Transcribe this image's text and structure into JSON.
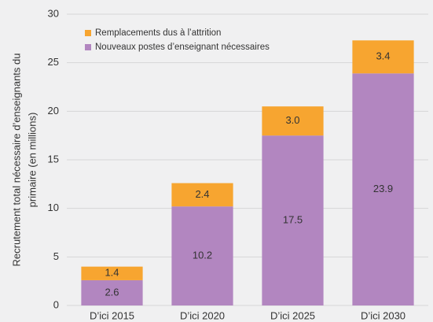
{
  "chart_data": {
    "type": "stacked_bar",
    "ylabel": [
      "Recrutement total nécessaire d’enseignants du",
      "primaire (en millions)"
    ],
    "categories": [
      "D’ici 2015",
      "D’ici 2020",
      "D’ici 2025",
      "D’ici 2030"
    ],
    "series": [
      {
        "name": "Nouveaux postes d’enseignant nécessaires",
        "color": "#b286c0",
        "values": [
          2.6,
          10.2,
          17.5,
          23.9
        ],
        "value_labels": [
          "2.6",
          "10.2",
          "17.5",
          "23.9"
        ]
      },
      {
        "name": "Remplacements dus à l’attrition",
        "color": "#f7a530",
        "values": [
          1.4,
          2.4,
          3.0,
          3.4
        ],
        "value_labels": [
          "1.4",
          "2.4",
          "3.0",
          "3.4"
        ]
      }
    ],
    "ylim": [
      0,
      30
    ],
    "yticks": [
      0,
      5,
      10,
      15,
      20,
      25,
      30
    ],
    "grid": true
  }
}
